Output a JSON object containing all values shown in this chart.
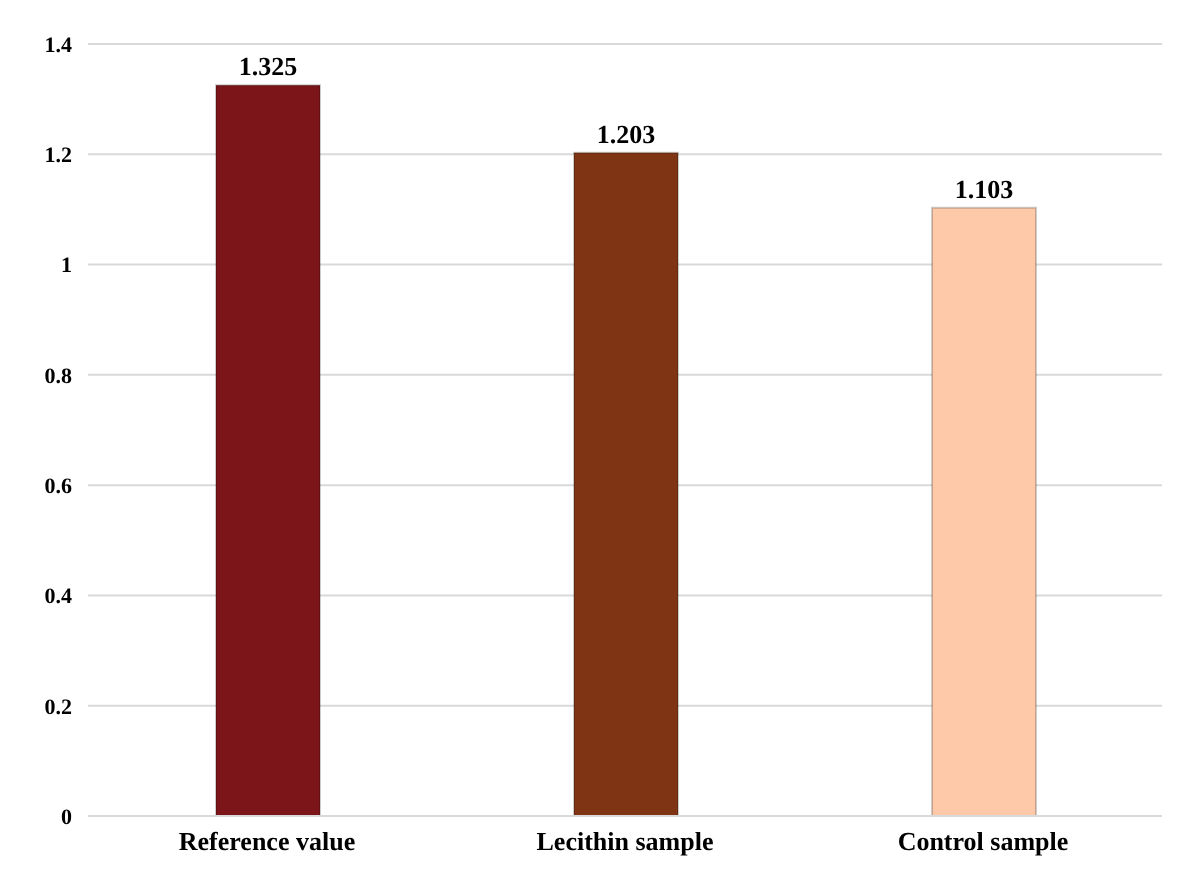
{
  "chart_data": {
    "type": "bar",
    "categories": [
      "Reference value",
      "Lecithin sample",
      "Control sample"
    ],
    "values": [
      1.325,
      1.203,
      1.103
    ],
    "colors": [
      "#7b1519",
      "#7f3513",
      "#fdc9a8"
    ],
    "ylim": [
      0,
      1.4
    ],
    "yticks": [
      0,
      0.2,
      0.4,
      0.6,
      0.8,
      1,
      1.2,
      1.4
    ],
    "grid": "y",
    "data_labels": true
  }
}
